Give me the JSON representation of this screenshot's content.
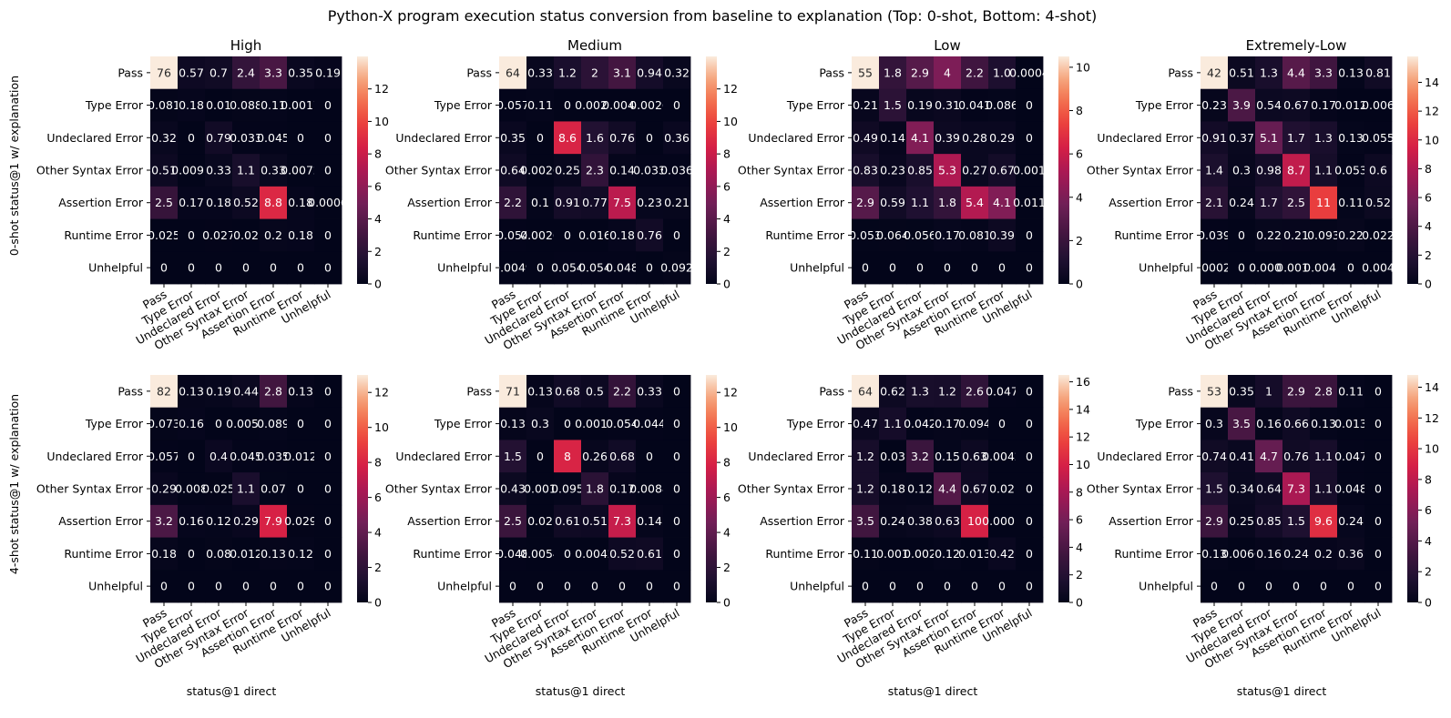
{
  "chart_data": {
    "type": "heatmap",
    "title": "Python-X program execution status conversion from baseline to explanation (Top: 0-shot, Bottom: 4-shot)",
    "categories": [
      "Pass",
      "Type Error",
      "Undeclared Error",
      "Other Syntax Error",
      "Assertion Error",
      "Runtime Error",
      "Unhelpful"
    ],
    "panel_titles": [
      "High",
      "Medium",
      "Low",
      "Extremely-Low"
    ],
    "row_ylabels": [
      "0-shot status@1 w/ explanation",
      "4-shot status@1 w/ explanation"
    ],
    "xlabel": "status@1 direct",
    "colormap": "rocket",
    "panels": [
      {
        "row": 0,
        "col": 0,
        "title": "High",
        "vmax": 14,
        "cbar_ticks": [
          0,
          2,
          4,
          6,
          8,
          10,
          12
        ],
        "values": [
          [
            76,
            0.57,
            0.7,
            2.4,
            3.3,
            0.35,
            0.19
          ],
          [
            0.081,
            0.18,
            0.01,
            0.088,
            0.11,
            0.0017,
            0
          ],
          [
            0.32,
            0,
            0.79,
            0.033,
            0.045,
            0,
            0
          ],
          [
            0.51,
            0.0091,
            0.33,
            1.1,
            0.33,
            0.0072,
            0
          ],
          [
            2.5,
            0.17,
            0.18,
            0.52,
            8.8,
            0.18,
            0.0006
          ],
          [
            0.025,
            0,
            0.027,
            0.02,
            0.2,
            0.18,
            0
          ],
          [
            0,
            0,
            0,
            0,
            0,
            0,
            0
          ]
        ],
        "labels": [
          [
            "76",
            "0.57",
            "0.7",
            "2.4",
            "3.3",
            "0.35",
            "0.19"
          ],
          [
            "0.081",
            "0.18",
            "0.01",
            "0.088",
            "0.11",
            "0.0017",
            "0"
          ],
          [
            "0.32",
            "0",
            "0.79",
            "0.033",
            "0.045",
            "0",
            "0"
          ],
          [
            "0.51",
            "0.0091",
            "0.33",
            "1.1",
            "0.33",
            "0.0072",
            "0"
          ],
          [
            "2.5",
            "0.17",
            "0.18",
            "0.52",
            "8.8",
            "0.18",
            "0.0006"
          ],
          [
            "0.025",
            "0",
            "0.027",
            "0.02",
            "0.2",
            "0.18",
            "0"
          ],
          [
            "0",
            "0",
            "0",
            "0",
            "0",
            "0",
            "0"
          ]
        ]
      },
      {
        "row": 0,
        "col": 1,
        "title": "Medium",
        "vmax": 14,
        "cbar_ticks": [
          0,
          2,
          4,
          6,
          8,
          10,
          12
        ],
        "values": [
          [
            64,
            0.33,
            1.2,
            2,
            3.1,
            0.94,
            0.32
          ],
          [
            0.057,
            0.11,
            0,
            0.0026,
            0.0045,
            0.0026,
            0
          ],
          [
            0.35,
            0,
            8.6,
            1.6,
            0.76,
            0,
            0.36
          ],
          [
            0.64,
            0.0026,
            0.25,
            2.3,
            0.14,
            0.033,
            0.036
          ],
          [
            2.2,
            0.1,
            0.91,
            0.77,
            7.5,
            0.23,
            0.21
          ],
          [
            0.054,
            0.0026,
            0,
            0.016,
            0.18,
            0.76,
            0
          ],
          [
            0.0049,
            0,
            0.054,
            0.054,
            0.048,
            0,
            0.092
          ]
        ],
        "labels": [
          [
            "64",
            "0.33",
            "1.2",
            "2",
            "3.1",
            "0.94",
            "0.32"
          ],
          [
            "0.057",
            "0.11",
            "0",
            "0.0026",
            "0.0045",
            "0.0026",
            "0"
          ],
          [
            "0.35",
            "0",
            "8.6",
            "1.6",
            "0.76",
            "0",
            "0.36"
          ],
          [
            "0.64",
            "0.0026",
            "0.25",
            "2.3",
            "0.14",
            "0.033",
            "0.036"
          ],
          [
            "2.2",
            "0.1",
            "0.91",
            "0.77",
            "7.5",
            "0.23",
            "0.21"
          ],
          [
            "0.054",
            "0.0026",
            "0",
            "0.016",
            "0.18",
            "0.76",
            "0"
          ],
          [
            "0.0049",
            "0",
            "0.054",
            "0.054",
            "0.048",
            "0",
            "0.092"
          ]
        ]
      },
      {
        "row": 0,
        "col": 2,
        "title": "Low",
        "vmax": 10.5,
        "cbar_ticks": [
          0,
          2,
          4,
          6,
          8,
          10
        ],
        "values": [
          [
            55,
            1.8,
            2.9,
            4,
            2.2,
            1,
            0.0004
          ],
          [
            0.21,
            1.5,
            0.19,
            0.31,
            0.041,
            0.086,
            0
          ],
          [
            0.49,
            0.14,
            4.1,
            0.39,
            0.28,
            0.29,
            0
          ],
          [
            0.83,
            0.23,
            0.85,
            5.3,
            0.27,
            0.67,
            0.001
          ],
          [
            2.9,
            0.59,
            1.1,
            1.8,
            5.4,
            4.1,
            0.011
          ],
          [
            0.053,
            0.064,
            0.056,
            0.17,
            0.081,
            0.39,
            0
          ],
          [
            0,
            0,
            0,
            0,
            0,
            0,
            0
          ]
        ],
        "labels": [
          [
            "55",
            "1.8",
            "2.9",
            "4",
            "2.2",
            "1.0",
            "0.0004"
          ],
          [
            "0.21",
            "1.5",
            "0.19",
            "0.31",
            "0.041",
            "0.086",
            "0"
          ],
          [
            "0.49",
            "0.14",
            "4.1",
            "0.39",
            "0.28",
            "0.29",
            "0"
          ],
          [
            "0.83",
            "0.23",
            "0.85",
            "5.3",
            "0.27",
            "0.67",
            "0.001"
          ],
          [
            "2.9",
            "0.59",
            "1.1",
            "1.8",
            "5.4",
            "4.1",
            "0.011"
          ],
          [
            "0.053",
            "0.064",
            "0.056",
            "0.17",
            "0.081",
            "0.39",
            "0"
          ],
          [
            "0",
            "0",
            "0",
            "0",
            "0",
            "0",
            "0"
          ]
        ]
      },
      {
        "row": 0,
        "col": 3,
        "title": "Extremely-Low",
        "vmax": 15.8,
        "cbar_ticks": [
          0,
          2,
          4,
          6,
          8,
          10,
          12,
          14
        ],
        "values": [
          [
            42,
            0.51,
            1.3,
            4.4,
            3.3,
            0.13,
            0.81
          ],
          [
            0.23,
            3.9,
            0.54,
            0.67,
            0.17,
            0.012,
            0.006
          ],
          [
            0.91,
            0.37,
            5.1,
            1.7,
            1.3,
            0.13,
            0.055
          ],
          [
            1.4,
            0.3,
            0.98,
            8.7,
            1.1,
            0.053,
            0.6
          ],
          [
            2.1,
            0.24,
            1.7,
            2.5,
            11,
            0.11,
            0.52
          ],
          [
            0.039,
            0,
            0.22,
            0.21,
            0.093,
            0.22,
            0.022
          ],
          [
            0.0002,
            0,
            0.0004,
            0.0018,
            0.0041,
            0,
            0.004
          ]
        ],
        "labels": [
          [
            "42",
            "0.51",
            "1.3",
            "4.4",
            "3.3",
            "0.13",
            "0.81"
          ],
          [
            "0.23",
            "3.9",
            "0.54",
            "0.67",
            "0.17",
            "0.012",
            "0.006"
          ],
          [
            "0.91",
            "0.37",
            "5.1",
            "1.7",
            "1.3",
            "0.13",
            "0.055"
          ],
          [
            "1.4",
            "0.3",
            "0.98",
            "8.7",
            "1.1",
            "0.053",
            "0.6"
          ],
          [
            "2.1",
            "0.24",
            "1.7",
            "2.5",
            "11",
            "0.11",
            "0.52"
          ],
          [
            "0.039",
            "0",
            "0.22",
            "0.21",
            "0.093",
            "0.22",
            "0.022"
          ],
          [
            "0.00021",
            "0",
            "0.0004",
            "0.0018",
            "0.0041",
            "0",
            "0.004"
          ]
        ]
      },
      {
        "row": 1,
        "col": 0,
        "title": "",
        "vmax": 13,
        "cbar_ticks": [
          0,
          2,
          4,
          6,
          8,
          10,
          12
        ],
        "values": [
          [
            82,
            0.13,
            0.19,
            0.44,
            2.8,
            0.13,
            0
          ],
          [
            0.073,
            0.16,
            0,
            0.0051,
            0.089,
            0,
            0
          ],
          [
            0.057,
            0,
            0.4,
            0.045,
            0.035,
            0.012,
            0
          ],
          [
            0.29,
            0.008,
            0.025,
            1.1,
            0.07,
            0,
            0
          ],
          [
            3.2,
            0.16,
            0.12,
            0.29,
            7.9,
            0.029,
            0
          ],
          [
            0.18,
            0,
            0.08,
            0.012,
            0.13,
            0.12,
            0
          ],
          [
            0,
            0,
            0,
            0,
            0,
            0,
            0
          ]
        ],
        "labels": [
          [
            "82",
            "0.13",
            "0.19",
            "0.44",
            "2.8",
            "0.13",
            "0"
          ],
          [
            "0.073",
            "0.16",
            "0",
            "0.0051",
            "0.089",
            "0",
            "0"
          ],
          [
            "0.057",
            "0",
            "0.4",
            "0.045",
            "0.035",
            "0.012",
            "0"
          ],
          [
            "0.29",
            "0.008",
            "0.025",
            "1.1",
            "0.07",
            "0",
            "0"
          ],
          [
            "3.2",
            "0.16",
            "0.12",
            "0.29",
            "7.9",
            "0.029",
            "0"
          ],
          [
            "0.18",
            "0",
            "0.08",
            "0.012",
            "0.13",
            "0.12",
            "0"
          ],
          [
            "0",
            "0",
            "0",
            "0",
            "0",
            "0",
            "0"
          ]
        ]
      },
      {
        "row": 1,
        "col": 1,
        "title": "",
        "vmax": 13,
        "cbar_ticks": [
          0,
          2,
          4,
          6,
          8,
          10,
          12
        ],
        "values": [
          [
            71,
            0.13,
            0.68,
            0.5,
            2.2,
            0.33,
            0
          ],
          [
            0.13,
            0.3,
            0,
            0.0012,
            0.054,
            0.044,
            0
          ],
          [
            1.5,
            0,
            8,
            0.26,
            0.68,
            0,
            0
          ],
          [
            0.43,
            0.001,
            0.095,
            1.8,
            0.17,
            0.0088,
            0
          ],
          [
            2.5,
            0.02,
            0.61,
            0.51,
            7.3,
            0.14,
            0
          ],
          [
            0.048,
            0.0054,
            0,
            0.0042,
            0.52,
            0.61,
            0
          ],
          [
            0,
            0,
            0,
            0,
            0,
            0,
            0
          ]
        ],
        "labels": [
          [
            "71",
            "0.13",
            "0.68",
            "0.5",
            "2.2",
            "0.33",
            "0"
          ],
          [
            "0.13",
            "0.3",
            "0",
            "0.0012",
            "0.054",
            "0.044",
            "0"
          ],
          [
            "1.5",
            "0",
            "8",
            "0.26",
            "0.68",
            "0",
            "0"
          ],
          [
            "0.43",
            "0.001",
            "0.095",
            "1.8",
            "0.17",
            "0.0088",
            "0"
          ],
          [
            "2.5",
            "0.02",
            "0.61",
            "0.51",
            "7.3",
            "0.14",
            "0"
          ],
          [
            "0.048",
            "0.0054",
            "0",
            "0.0042",
            "0.52",
            "0.61",
            "0"
          ],
          [
            "0",
            "0",
            "0",
            "0",
            "0",
            "0",
            "0"
          ]
        ]
      },
      {
        "row": 1,
        "col": 2,
        "title": "",
        "vmax": 16.5,
        "cbar_ticks": [
          0,
          2,
          4,
          6,
          8,
          10,
          12,
          14,
          16
        ],
        "values": [
          [
            64,
            0.62,
            1.3,
            1.2,
            2.6,
            0.047,
            0
          ],
          [
            0.47,
            1.1,
            0.042,
            0.17,
            0.094,
            0,
            0
          ],
          [
            1.2,
            0.03,
            3.2,
            0.15,
            0.63,
            0.0042,
            0
          ],
          [
            1.2,
            0.18,
            0.12,
            4.4,
            0.67,
            0.02,
            0
          ],
          [
            3.5,
            0.24,
            0.38,
            0.63,
            10,
            0.0001,
            0
          ],
          [
            0.11,
            0.001,
            0.002,
            0.12,
            0.013,
            0.42,
            0
          ],
          [
            0,
            0,
            0,
            0,
            0,
            0,
            0
          ]
        ],
        "labels": [
          [
            "64",
            "0.62",
            "1.3",
            "1.2",
            "2.6",
            "0.047",
            "0"
          ],
          [
            "0.47",
            "1.1",
            "0.042",
            "0.17",
            "0.094",
            "0",
            "0"
          ],
          [
            "1.2",
            "0.03",
            "3.2",
            "0.15",
            "0.63",
            "0.0042",
            "0"
          ],
          [
            "1.2",
            "0.18",
            "0.12",
            "4.4",
            "0.67",
            "0.02",
            "0"
          ],
          [
            "3.5",
            "0.24",
            "0.38",
            "0.63",
            "10",
            "0.0001",
            "0"
          ],
          [
            "0.11",
            "0.001",
            "0.002",
            "0.12",
            "0.013",
            "0.42",
            "0"
          ],
          [
            "0",
            "0",
            "0",
            "0",
            "0",
            "0",
            "0"
          ]
        ]
      },
      {
        "row": 1,
        "col": 3,
        "title": "",
        "vmax": 14.8,
        "cbar_ticks": [
          0,
          2,
          4,
          6,
          8,
          10,
          12,
          14
        ],
        "values": [
          [
            53,
            0.35,
            1,
            2.9,
            2.8,
            0.11,
            0
          ],
          [
            0.3,
            3.5,
            0.16,
            0.66,
            0.13,
            0.013,
            0
          ],
          [
            0.74,
            0.41,
            4.7,
            0.76,
            1.1,
            0.047,
            0
          ],
          [
            1.5,
            0.34,
            0.64,
            7.3,
            1.1,
            0.048,
            0
          ],
          [
            2.9,
            0.25,
            0.85,
            1.5,
            9.6,
            0.24,
            0
          ],
          [
            0.13,
            0.0066,
            0.16,
            0.24,
            0.2,
            0.36,
            0
          ],
          [
            0,
            0,
            0,
            0,
            0,
            0,
            0
          ]
        ],
        "labels": [
          [
            "53",
            "0.35",
            "1",
            "2.9",
            "2.8",
            "0.11",
            "0"
          ],
          [
            "0.3",
            "3.5",
            "0.16",
            "0.66",
            "0.13",
            "0.013",
            "0"
          ],
          [
            "0.74",
            "0.41",
            "4.7",
            "0.76",
            "1.1",
            "0.047",
            "0"
          ],
          [
            "1.5",
            "0.34",
            "0.64",
            "7.3",
            "1.1",
            "0.048",
            "0"
          ],
          [
            "2.9",
            "0.25",
            "0.85",
            "1.5",
            "9.6",
            "0.24",
            "0"
          ],
          [
            "0.13",
            "0.0066",
            "0.16",
            "0.24",
            "0.2",
            "0.36",
            "0"
          ],
          [
            "0",
            "0",
            "0",
            "0",
            "0",
            "0",
            "0"
          ]
        ]
      }
    ]
  }
}
